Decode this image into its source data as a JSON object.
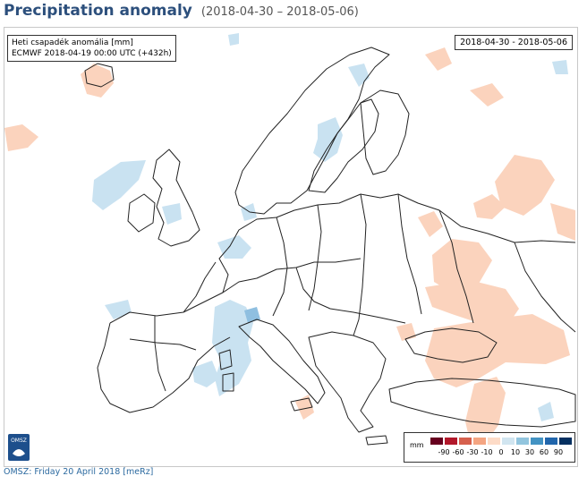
{
  "header": {
    "title": "Precipitation anomaly",
    "date_range": "(2018-04-30 – 2018-05-06)"
  },
  "map": {
    "info_line1": "Heti csapadék anomália [mm]",
    "info_line2": "ECMWF 2018-04-19 00:00 UTC (+432h)",
    "date_box": "2018-04-30 - 2018-05-06",
    "logo_text": "OMSZ"
  },
  "legend": {
    "unit": "mm",
    "labels": [
      "-90",
      "-60",
      "-30",
      "-10",
      "0",
      "10",
      "30",
      "60",
      "90"
    ],
    "colors": [
      "#67001f",
      "#b2182b",
      "#d6604d",
      "#f4a582",
      "#fddbc7",
      "#d1e5f0",
      "#92c5de",
      "#4393c3",
      "#2166ac",
      "#053061"
    ]
  },
  "colors": {
    "dry": "#fbd3bd",
    "wet": "#c9e2f1",
    "wet_strong": "#8fbfe0",
    "border": "#222222",
    "title": "#2c4f7c"
  },
  "footer": {
    "text": "OMSZ: Friday 20 April 2018  [meRz]"
  }
}
